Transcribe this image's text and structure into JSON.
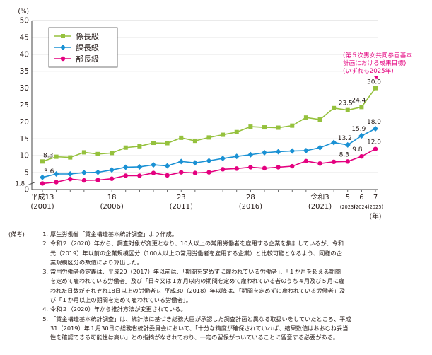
{
  "chart_data": {
    "type": "line",
    "y_unit_label": "(%)",
    "x_unit_label": "(年)",
    "ylim": [
      0,
      50
    ],
    "y_ticks": [
      "0",
      "5",
      "10",
      "15",
      "20",
      "25",
      "30",
      "35",
      "40",
      "45",
      "50"
    ],
    "y_break_label": "1.8",
    "x": [
      2001,
      2002,
      2003,
      2004,
      2005,
      2006,
      2007,
      2008,
      2009,
      2010,
      2011,
      2012,
      2013,
      2014,
      2015,
      2016,
      2017,
      2018,
      2019,
      2020,
      2021,
      2022,
      2023,
      2024,
      2025
    ],
    "x_ticks": [
      {
        "year": 2001,
        "era": "平成13",
        "western": "(2001)"
      },
      {
        "year": 2006,
        "era": "18",
        "western": "(2006)"
      },
      {
        "year": 2011,
        "era": "23",
        "western": "(2011)"
      },
      {
        "year": 2016,
        "era": "28",
        "western": "(2016)"
      },
      {
        "year": 2021,
        "era": "令和3",
        "western": "(2021)"
      },
      {
        "year": 2023,
        "era": "5",
        "western": "(2023)"
      },
      {
        "year": 2024,
        "era": "6",
        "western": "(2024)"
      },
      {
        "year": 2025,
        "era": "7",
        "western": "(2025)"
      }
    ],
    "series": [
      {
        "name": "係長級",
        "color": "#95c13d",
        "marker": "square",
        "values": [
          8.3,
          9.7,
          9.5,
          11.0,
          10.5,
          10.8,
          12.4,
          12.8,
          13.8,
          13.7,
          15.3,
          14.4,
          15.4,
          16.2,
          17.0,
          18.6,
          18.4,
          18.3,
          18.9,
          21.3,
          20.7,
          24.1,
          23.5,
          24.4,
          30.0
        ],
        "labels": [
          {
            "index": 0,
            "text": "8.3"
          },
          {
            "index": 22,
            "text": "23.5"
          },
          {
            "index": 23,
            "text": "24.4"
          },
          {
            "index": 24,
            "text": "30.0"
          }
        ]
      },
      {
        "name": "課長級",
        "color": "#1a91d4",
        "marker": "diamond",
        "values": [
          3.6,
          4.6,
          4.6,
          5.0,
          5.1,
          5.8,
          6.6,
          6.7,
          7.3,
          7.0,
          8.3,
          7.9,
          8.5,
          9.2,
          9.8,
          10.3,
          10.9,
          11.2,
          11.4,
          11.5,
          12.4,
          13.9,
          13.2,
          15.9,
          18.0
        ],
        "labels": [
          {
            "index": 0,
            "text": "3.6"
          },
          {
            "index": 22,
            "text": "13.2"
          },
          {
            "index": 23,
            "text": "15.9"
          },
          {
            "index": 24,
            "text": "18.0"
          }
        ]
      },
      {
        "name": "部長級",
        "color": "#e4007f",
        "marker": "circle",
        "values": [
          1.8,
          2.2,
          3.1,
          2.7,
          2.8,
          3.2,
          4.1,
          4.1,
          4.9,
          4.2,
          5.1,
          4.9,
          5.1,
          6.0,
          6.2,
          6.6,
          6.3,
          6.6,
          6.9,
          8.4,
          7.7,
          8.2,
          8.3,
          9.8,
          12.0
        ],
        "labels": [
          {
            "index": 22,
            "text": "8.3"
          },
          {
            "index": 23,
            "text": "9.8"
          },
          {
            "index": 24,
            "text": "12.0"
          }
        ]
      }
    ],
    "annotation": [
      "(第５次男女共同参画基本",
      "計画における成果目標)",
      "(いずれも2025年)"
    ],
    "annotation_color": "#e4007f",
    "legend_position": "top-left"
  },
  "notes": {
    "header": "(備考)",
    "items": [
      {
        "num": "1.",
        "lines": [
          "厚生労働省「賃金構造基本統計調査」より作成。"
        ]
      },
      {
        "num": "2.",
        "lines": [
          "令和２（2020）年から、調査対象が変更となり、10人以上の常用労働者を雇用する企業を集計しているが、令和",
          "元（2019）年以前の企業規模区分（100人以上の常用労働者を雇用する企業）と比較可能となるよう、同様の企",
          "業規模区分の数値により算出した。"
        ]
      },
      {
        "num": "3.",
        "lines": [
          "常用労働者の定義は、平成29（2017）年以前は、「期間を定めずに雇われている労働者」、「１か月を超える期間",
          "を定めて雇われている労働者」及び「日々又は１か月以内の期間を定めて雇われている者のうち４月及び５月に雇",
          "われた日数がそれぞれ18日以上の労働者」。平成30（2018）年以降は、「期間を定めずに雇われている労働者」及",
          "び「１か月以上の期間を定めて雇われている労働者」。"
        ]
      },
      {
        "num": "4.",
        "lines": [
          "令和２（2020）年から推計方法が変更されている。"
        ]
      },
      {
        "num": "5.",
        "lines": [
          "「賃金構造基本統計調査」は、統計法に基づき総務大臣が承認した調査計画と異なる取扱いをしていたところ、平成",
          "31（2019）年１月30日の総務省統計委員会において、「十分な精度が確保されていれば、結果数値はおおむね妥当",
          "性を確認できる可能性は高い」との指摘がなされており、一定の留保がついていることに留意する必要がある。"
        ]
      }
    ]
  }
}
